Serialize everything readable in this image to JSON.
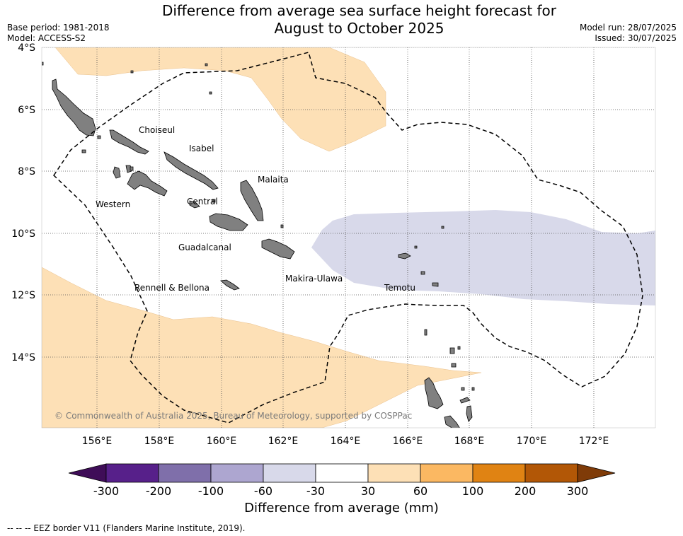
{
  "title_line1": "Difference from average sea surface height forecast for",
  "title_line2": "August to October 2025",
  "meta_left": {
    "base_period": "Base period: 1981-2018",
    "model": "Model: ACCESS-S2"
  },
  "meta_right": {
    "model_run": "Model run: 28/07/2025",
    "issued": "Issued: 30/07/2025"
  },
  "map": {
    "lat_labels": [
      "4°S",
      "6°S",
      "8°S",
      "10°S",
      "12°S",
      "14°S"
    ],
    "lon_labels": [
      "156°E",
      "158°E",
      "160°E",
      "162°E",
      "164°E",
      "166°E",
      "168°E",
      "170°E",
      "172°E"
    ],
    "province_labels": [
      "Choiseul",
      "Isabel",
      "Malaita",
      "Western",
      "Central",
      "Guadalcanal",
      "Makira-Ulawa",
      "Rennell & Bellona",
      "Temotu"
    ],
    "copyright": "© Commonwealth of Australia 2025, Bureau of Meteorology, supported by COSPPac",
    "colors": {
      "positive_30_60": "#fde0b6",
      "negative_30_60": "#d8d9ea",
      "land": "#808080",
      "eez_line": "#000000"
    }
  },
  "colorbar": {
    "ticks": [
      "-300",
      "-200",
      "-100",
      "-60",
      "-30",
      "30",
      "60",
      "100",
      "200",
      "300"
    ],
    "colors": [
      "#3f0d58",
      "#57208a",
      "#7f6faa",
      "#ada6d0",
      "#d8d9ea",
      "#ffffff",
      "#fde0b6",
      "#fbb862",
      "#e08313",
      "#b25706",
      "#7f3b08"
    ],
    "label": "Difference from average (mm)"
  },
  "eez_note": "--  --  -- EEZ border V11 (Flanders Marine Institute, 2019)."
}
